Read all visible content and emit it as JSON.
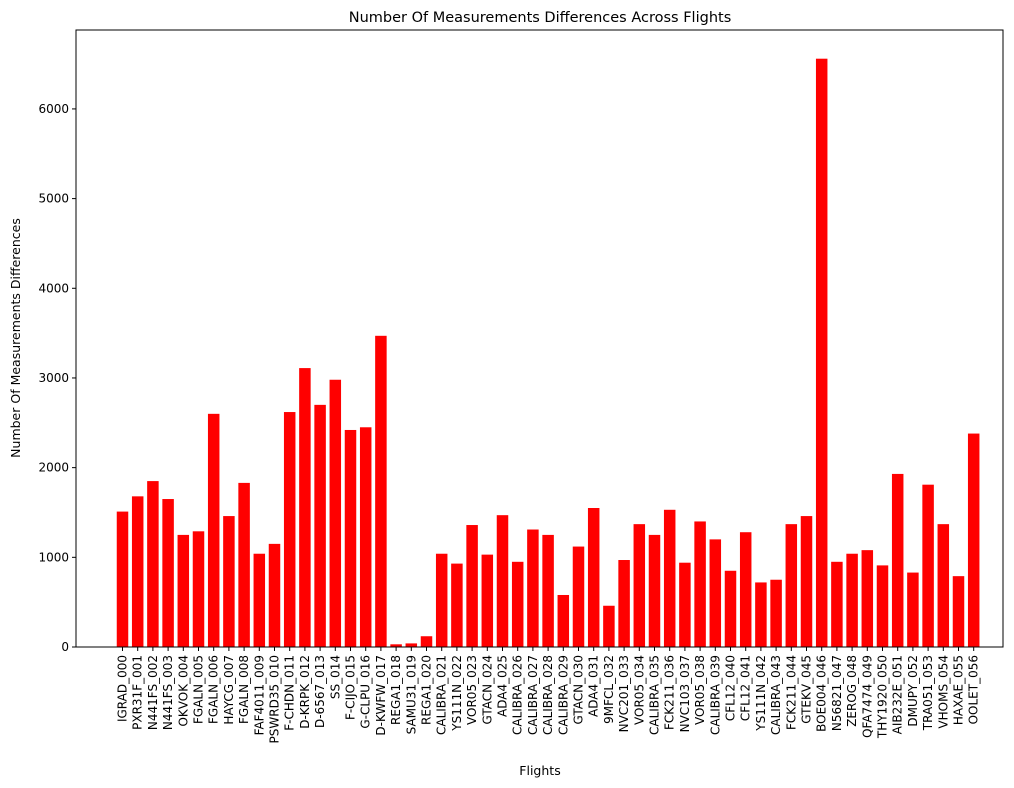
{
  "chart_data": {
    "type": "bar",
    "title": "Number Of Measurements Differences Across Flights",
    "xlabel": "Flights",
    "ylabel": "Number Of Measurements Differences",
    "ylim": [
      0,
      6880
    ],
    "yticks": [
      0,
      1000,
      2000,
      3000,
      4000,
      5000,
      6000
    ],
    "grid": false,
    "bar_color": "#ff0000",
    "categories": [
      "IGRAD_000",
      "PXR31F_001",
      "N441FS_002",
      "N441FS_003",
      "OKVOK_004",
      "FGALN_005",
      "FGALN_006",
      "HAYCG_007",
      "FGALN_008",
      "FAF4011_009",
      "PSWRD35_010",
      "F-CHDN_011",
      "D-KRPK_012",
      "D-6567_013",
      "SS_014",
      "F-CIJO_015",
      "G-CLPU_016",
      "D-KWFW_017",
      "REGA1_018",
      "SAMU31_019",
      "REGA1_020",
      "CALIBRA_021",
      "YS111N_022",
      "VOR05_023",
      "GTACN_024",
      "ADA4_025",
      "CALIBRA_026",
      "CALIBRA_027",
      "CALIBRA_028",
      "CALIBRA_029",
      "GTACN_030",
      "ADA4_031",
      "9MFCL_032",
      "NVC201_033",
      "VOR05_034",
      "CALIBRA_035",
      "FCK211_036",
      "NVC103_037",
      "VOR05_038",
      "CALIBRA_039",
      "CFL12_040",
      "CFL12_041",
      "YS111N_042",
      "CALIBRA_043",
      "FCK211_044",
      "GTEKV_045",
      "BOE004_046",
      "N56821_047",
      "ZEROG_048",
      "QFA7474_049",
      "THY1920_050",
      "AIB232E_051",
      "DMUPY_052",
      "TRA051_053",
      "VHOMS_054",
      "HAXAE_055",
      "OOLET_056"
    ],
    "values": [
      1510,
      1680,
      1850,
      1650,
      1250,
      1290,
      2600,
      1460,
      1830,
      1040,
      1150,
      2620,
      3110,
      2700,
      2980,
      2420,
      2450,
      3470,
      30,
      40,
      120,
      1040,
      930,
      1360,
      1030,
      1470,
      950,
      1310,
      1250,
      580,
      1120,
      1550,
      460,
      970,
      1370,
      1250,
      1530,
      940,
      1400,
      1200,
      850,
      1280,
      720,
      750,
      1370,
      1460,
      6560,
      950,
      1040,
      1080,
      910,
      1930,
      830,
      1810,
      1370,
      790,
      2380
    ]
  }
}
